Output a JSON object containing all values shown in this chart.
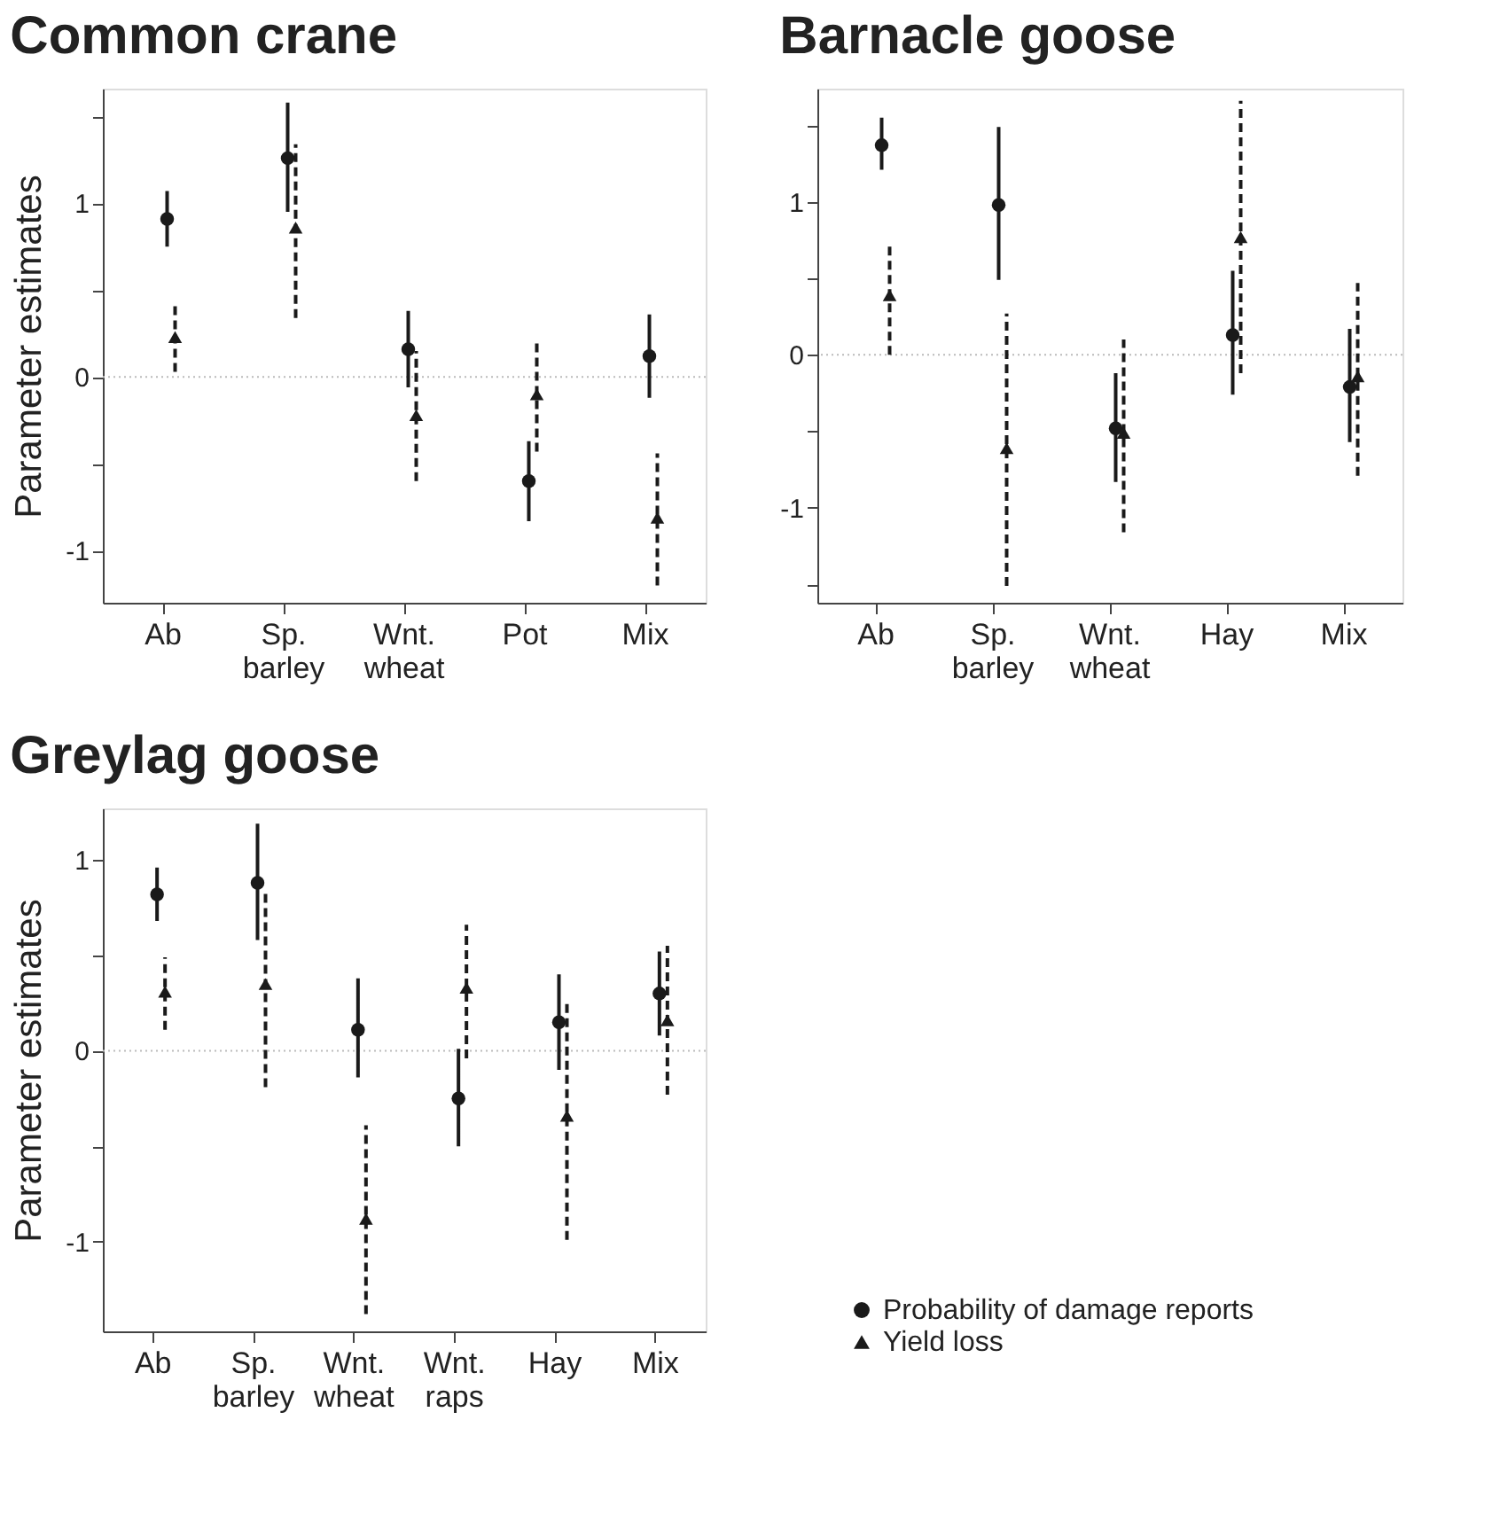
{
  "chart_data": [
    {
      "type": "scatter",
      "title": "Common crane",
      "ylabel": "Parameter estimates",
      "categories": [
        "Ab",
        "Sp. barley",
        "Wnt. wheat",
        "Pot",
        "Mix"
      ],
      "ylim": [
        -1.3,
        1.66
      ],
      "yticks": [
        -1,
        {
          "value": -0.5,
          "label": null
        },
        0,
        {
          "value": 0.5,
          "label": null
        },
        1,
        {
          "value": 1.5,
          "label": null
        }
      ],
      "series": [
        {
          "color": "#1a1a1a",
          "marker": "circle",
          "line_style": "solid",
          "values": [
            0.91,
            1.26,
            0.16,
            -0.6,
            0.12
          ],
          "errors": [
            [
              0.75,
              1.07
            ],
            [
              0.95,
              1.58
            ],
            [
              -0.06,
              0.38
            ],
            [
              -0.83,
              -0.37
            ],
            [
              -0.12,
              0.36
            ]
          ]
        },
        {
          "color": "#1a1a1a",
          "marker": "triangle",
          "line_style": "dashed",
          "values": [
            0.23,
            0.86,
            -0.22,
            -0.1,
            -0.81
          ],
          "errors": [
            [
              0.03,
              0.41
            ],
            [
              0.34,
              1.34
            ],
            [
              -0.6,
              0.15
            ],
            [
              -0.43,
              0.22
            ],
            [
              -1.2,
              -0.44
            ]
          ]
        }
      ],
      "ref_lines": [
        {
          "axis": "y",
          "value": 0,
          "color": "#bbbbbb",
          "line_style": "dotted"
        }
      ]
    },
    {
      "type": "scatter",
      "title": "Barnacle goose",
      "categories": [
        "Ab",
        "Sp. barley",
        "Wnt. wheat",
        "Hay",
        "Mix"
      ],
      "ylim": [
        -1.62,
        1.74
      ],
      "yticks": [
        {
          "value": -1.5,
          "label": null
        },
        -1,
        {
          "value": -0.5,
          "label": null
        },
        0,
        {
          "value": 0.5,
          "label": null
        },
        1,
        {
          "value": 1.5,
          "label": null
        }
      ],
      "series": [
        {
          "color": "#1a1a1a",
          "marker": "circle",
          "line_style": "solid",
          "values": [
            1.37,
            0.98,
            -0.48,
            0.13,
            -0.21
          ],
          "errors": [
            [
              1.21,
              1.55
            ],
            [
              0.49,
              1.49
            ],
            [
              -0.83,
              -0.12
            ],
            [
              -0.26,
              0.55
            ],
            [
              -0.57,
              0.17
            ]
          ]
        },
        {
          "color": "#1a1a1a",
          "marker": "triangle",
          "line_style": "dashed",
          "values": [
            0.39,
            -0.61,
            -0.51,
            0.77,
            -0.14
          ],
          "errors": [
            [
              0.0,
              0.74
            ],
            [
              -1.51,
              0.27
            ],
            [
              -1.16,
              0.1
            ],
            [
              -0.12,
              1.66
            ],
            [
              -0.79,
              0.47
            ]
          ]
        }
      ],
      "ref_lines": [
        {
          "axis": "y",
          "value": 0,
          "color": "#bbbbbb",
          "line_style": "dotted"
        }
      ]
    },
    {
      "type": "scatter",
      "title": "Greylag goose",
      "ylabel": "Parameter estimates",
      "legend": "bottom right",
      "categories": [
        "Ab",
        "Sp. barley",
        "Wnt. wheat",
        "Wnt. raps",
        "Hay",
        "Mix"
      ],
      "ylim": [
        -1.47,
        1.27
      ],
      "yticks": [
        -1,
        {
          "value": -0.5,
          "label": null
        },
        0,
        {
          "value": 0.5,
          "label": null
        },
        1
      ],
      "series": [
        {
          "name": "Probability of damage reports",
          "color": "#1a1a1a",
          "marker": "circle",
          "line_style": "solid",
          "values": [
            0.82,
            0.88,
            0.11,
            -0.25,
            0.15,
            0.3
          ],
          "errors": [
            [
              0.68,
              0.96
            ],
            [
              0.58,
              1.19
            ],
            [
              -0.14,
              0.38
            ],
            [
              -0.5,
              0.01
            ],
            [
              -0.1,
              0.4
            ],
            [
              0.08,
              0.52
            ]
          ]
        },
        {
          "name": "Yield loss",
          "color": "#1a1a1a",
          "marker": "triangle",
          "line_style": "dashed",
          "values": [
            0.31,
            0.35,
            -0.88,
            0.33,
            -0.34,
            0.16
          ],
          "errors": [
            [
              0.11,
              0.49
            ],
            [
              -0.19,
              0.83
            ],
            [
              -1.38,
              -0.39
            ],
            [
              -0.04,
              0.66
            ],
            [
              -0.99,
              0.25
            ],
            [
              -0.23,
              0.55
            ]
          ]
        }
      ],
      "ref_lines": [
        {
          "axis": "y",
          "value": 0,
          "color": "#bbbbbb",
          "line_style": "dotted"
        }
      ]
    }
  ]
}
